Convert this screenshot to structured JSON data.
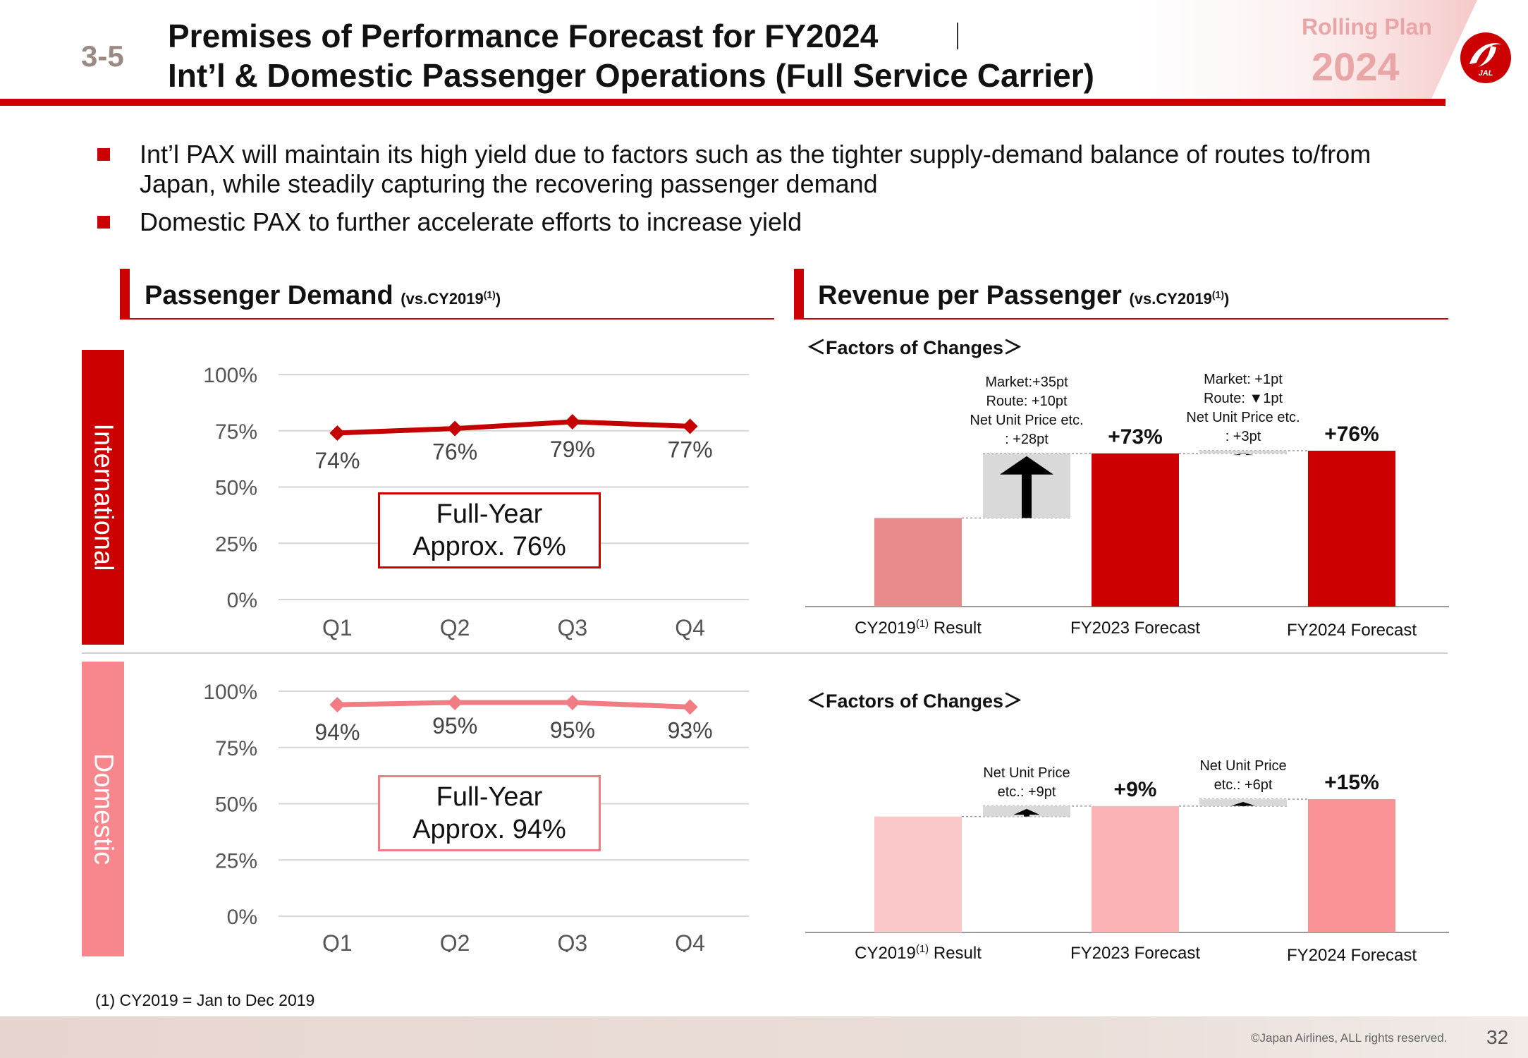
{
  "header": {
    "slide_number": "3-5",
    "title_line1": "Premises of Performance Forecast for FY2024",
    "title_line2": "Int’l & Domestic Passenger Operations (Full Service Carrier)",
    "rolling_plan_label": "Rolling Plan",
    "rolling_plan_year": "2024",
    "logo_text": "JAL"
  },
  "bullets": [
    "Int’l PAX will maintain its high yield due to factors such as the tighter supply-demand balance of routes to/from Japan, while steadily capturing the recovering passenger demand",
    "Domestic PAX to further accelerate efforts to increase yield"
  ],
  "sections": {
    "demand_title": "Passenger Demand",
    "demand_sub": "(vs.CY2019",
    "revenue_title": "Revenue per Passenger",
    "revenue_sub": "(vs.CY2019",
    "sub_sup": "(1)",
    "sub_close": ")"
  },
  "side_labels": {
    "international": "International",
    "domestic": "Domestic"
  },
  "colors": {
    "brand_red": "#cc0000",
    "intl_line": "#c40000",
    "dom_line": "#f07d84",
    "intl_base": "#e8898b",
    "dom_base": "#fbc8ca",
    "dom_mid": "#fbb3b6",
    "dom_forecast": "#f99396",
    "increment_gray": "#d9d9d9"
  },
  "chart_data": [
    {
      "type": "line",
      "segment": "International",
      "categories": [
        "Q1",
        "Q2",
        "Q3",
        "Q4"
      ],
      "values": [
        74,
        76,
        79,
        77
      ],
      "value_labels": [
        "74%",
        "76%",
        "79%",
        "77%"
      ],
      "yticks": [
        "100%",
        "75%",
        "50%",
        "25%",
        "0%"
      ],
      "ylim": [
        0,
        100
      ],
      "annotation": [
        "Full-Year",
        "Approx. 76%"
      ]
    },
    {
      "type": "line",
      "segment": "Domestic",
      "categories": [
        "Q1",
        "Q2",
        "Q3",
        "Q4"
      ],
      "values": [
        94,
        95,
        95,
        93
      ],
      "value_labels": [
        "94%",
        "95%",
        "95%",
        "93%"
      ],
      "yticks": [
        "100%",
        "75%",
        "50%",
        "25%",
        "0%"
      ],
      "ylim": [
        0,
        100
      ],
      "annotation": [
        "Full-Year",
        "Approx. 94%"
      ]
    },
    {
      "type": "bar",
      "segment": "International",
      "factors_label": "＜Factors of Changes＞",
      "categories": [
        "CY2019",
        "FY2023 Forecast",
        "FY2024 Forecast"
      ],
      "category_sup": "(1)",
      "category_suffix": " Result",
      "values": [
        100,
        173,
        176
      ],
      "value_labels": [
        "",
        "+73%",
        "+76%"
      ],
      "increments": [
        {
          "from": 100,
          "to": 173,
          "notes": [
            "Market:+35pt",
            "Route: +10pt",
            "Net Unit Price etc.",
            ": +28pt"
          ]
        },
        {
          "from": 173,
          "to": 176,
          "notes": [
            "Market: +1pt",
            "Route: ▼1pt",
            "Net Unit Price etc.",
            ": +3pt"
          ]
        }
      ]
    },
    {
      "type": "bar",
      "segment": "Domestic",
      "factors_label": "＜Factors of Changes＞",
      "categories": [
        "CY2019",
        "FY2023 Forecast",
        "FY2024 Forecast"
      ],
      "category_sup": "(1)",
      "category_suffix": " Result",
      "values": [
        100,
        109,
        115
      ],
      "value_labels": [
        "",
        "+9%",
        "+15%"
      ],
      "increments": [
        {
          "from": 100,
          "to": 109,
          "notes": [
            "Net Unit Price",
            "etc.: +9pt"
          ]
        },
        {
          "from": 109,
          "to": 115,
          "notes": [
            "Net Unit Price",
            "etc.: +6pt"
          ]
        }
      ]
    }
  ],
  "footnote": "(1) CY2019 = Jan to Dec 2019",
  "footer": {
    "copyright": "©Japan Airlines, ALL rights reserved.",
    "page_number": "32"
  }
}
